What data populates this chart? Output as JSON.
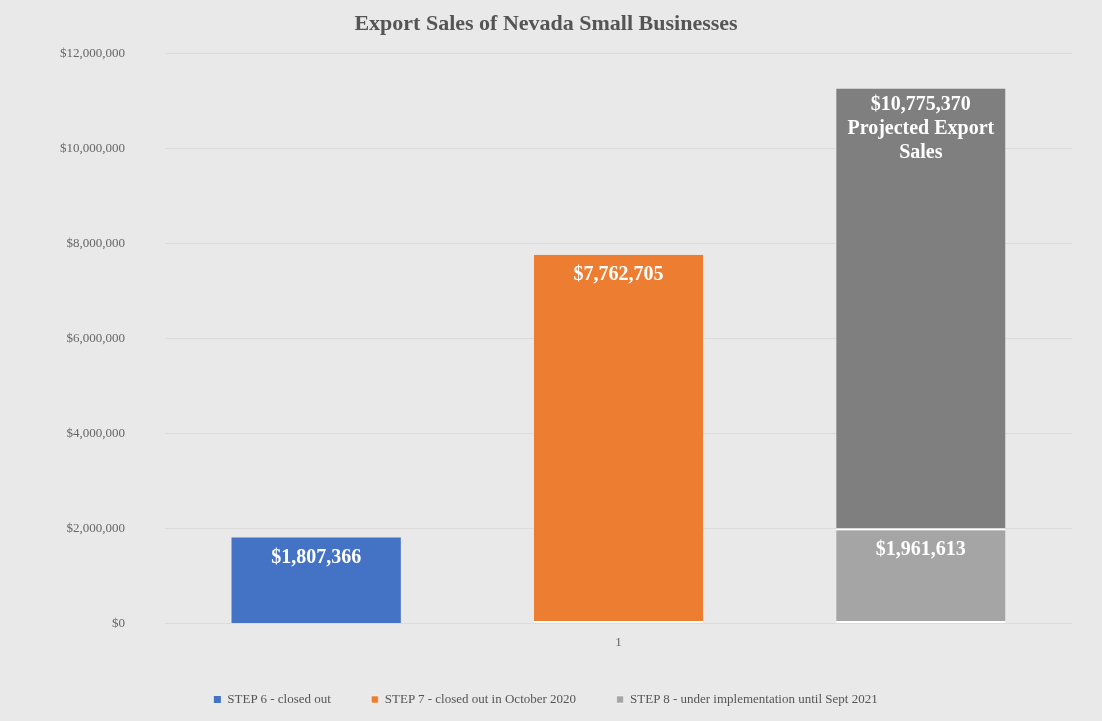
{
  "chart_data": {
    "type": "bar",
    "title": "Export Sales of Nevada Small Businesses",
    "categories": [
      null,
      "1",
      null
    ],
    "stacked": true,
    "series": [
      {
        "name": "STEP 6 - closed out",
        "color": "#4472c4",
        "values": [
          1807366,
          null,
          null
        ],
        "value_labels": [
          "$1,807,366",
          null,
          null
        ]
      },
      {
        "name": "STEP 7 - closed out in October 2020",
        "color": "#ed7d31",
        "values": [
          null,
          7762705,
          null
        ],
        "value_labels": [
          null,
          "$7,762,705",
          null
        ]
      },
      {
        "name": "STEP 8 - under implementation until Sept 2021",
        "color": "#a5a5a5",
        "values": [
          null,
          null,
          1961613
        ],
        "value_labels": [
          null,
          null,
          "$1,961,613"
        ]
      },
      {
        "color": "#7f7f7f",
        "values": [
          null,
          null,
          9300000
        ]
      }
    ],
    "annotations": [
      "$10,775,370 Projected Export Sales"
    ],
    "ylim": [
      0,
      12000000
    ],
    "yticks": [
      {
        "value": 0,
        "label": "$0"
      },
      {
        "value": 2000000,
        "label": "$2,000,000"
      },
      {
        "value": 4000000,
        "label": "$4,000,000"
      },
      {
        "value": 6000000,
        "label": "$6,000,000"
      },
      {
        "value": 8000000,
        "label": "$8,000,000"
      },
      {
        "value": 10000000,
        "label": "$10,000,000"
      },
      {
        "value": 12000000,
        "label": "$12,000,000"
      }
    ],
    "grid": "y",
    "legend": "bottom"
  }
}
